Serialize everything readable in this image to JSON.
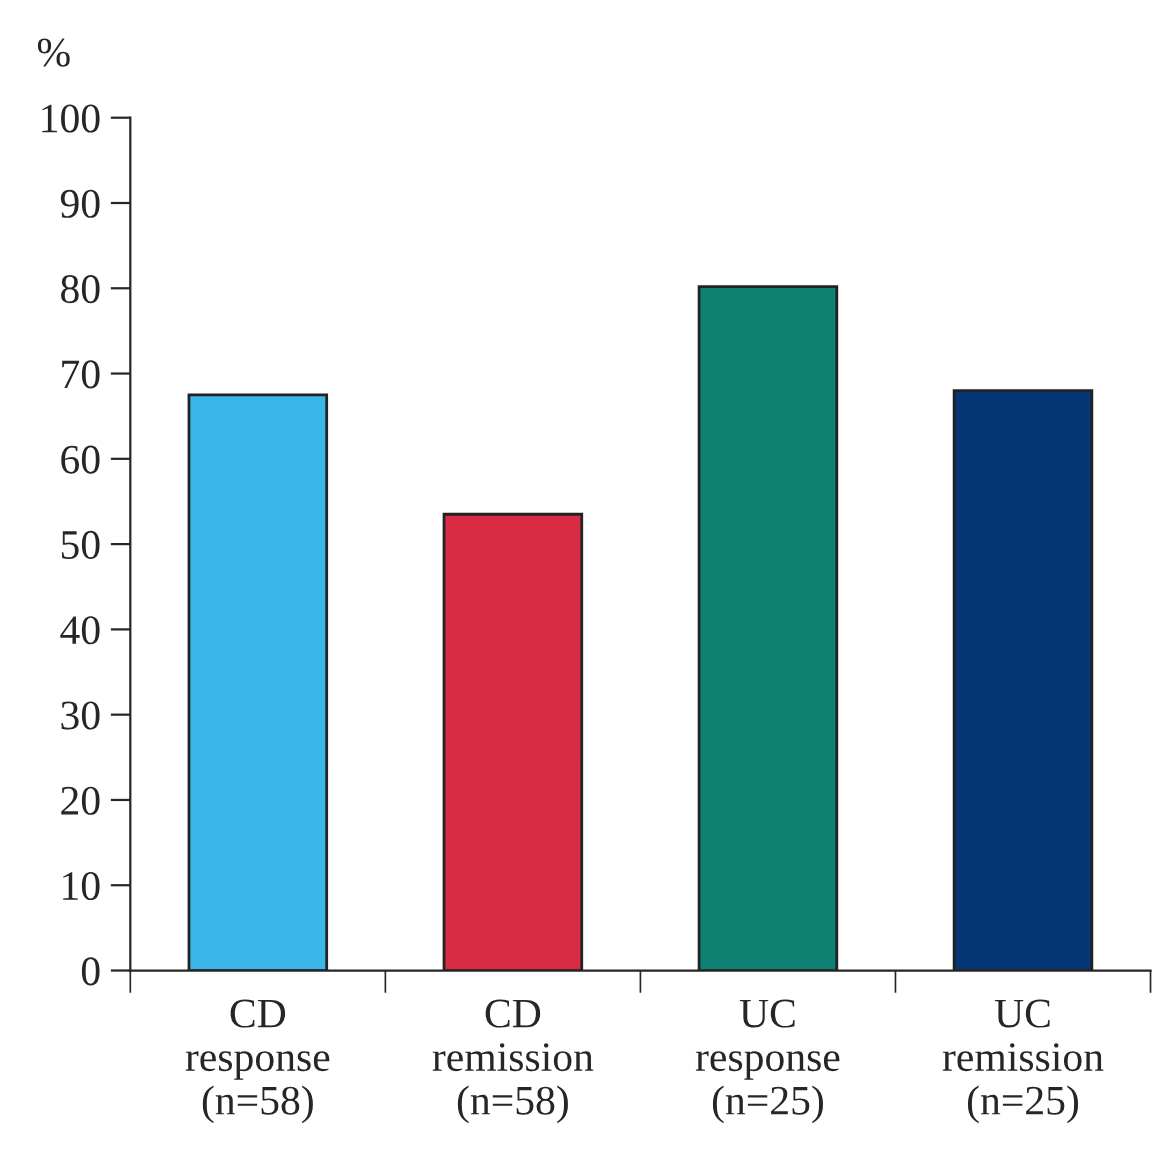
{
  "chart_data": {
    "type": "bar",
    "ylabel": "%",
    "categories": [
      "CD\nresponse\n(n=58)",
      "CD\nremission\n(n=58)",
      "UC\nresponse\n(n=25)",
      "UC\nremission\n(n=25)"
    ],
    "values": [
      67.5,
      53.5,
      80.2,
      68.0
    ],
    "colors": [
      "#3bb6e8",
      "#d92b43",
      "#0e8272",
      "#043676"
    ],
    "ylim": [
      0,
      100
    ],
    "yticks": [
      0,
      10,
      20,
      30,
      40,
      50,
      60,
      70,
      80,
      90,
      100
    ],
    "grid": false
  }
}
